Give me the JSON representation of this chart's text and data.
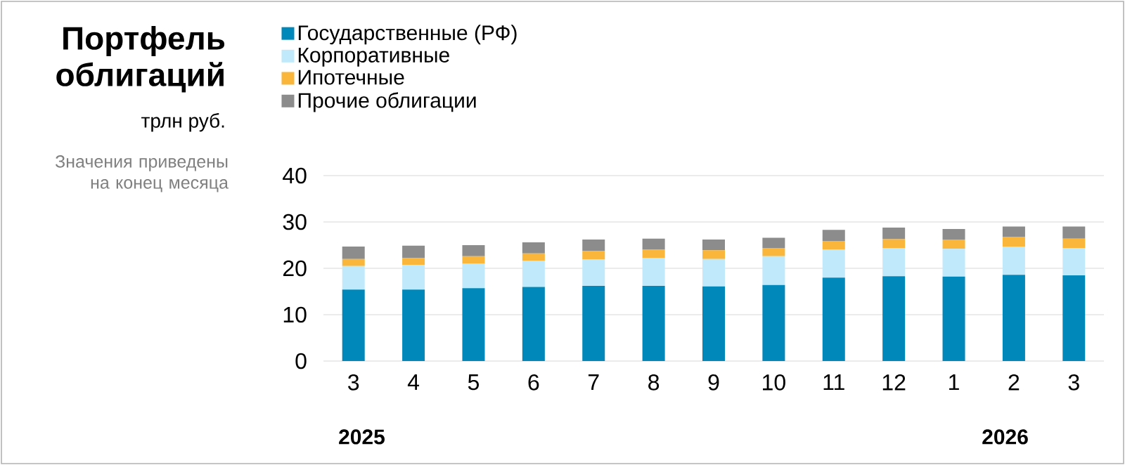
{
  "chart_data": {
    "type": "bar",
    "stacked": true,
    "title": "Портфель облигаций",
    "subtitle": "трлн руб.",
    "annotations": [
      "Значения приведены на конец месяца",
      "2025",
      "2026"
    ],
    "categories": [
      "3",
      "4",
      "5",
      "6",
      "7",
      "8",
      "9",
      "10",
      "11",
      "12",
      "1",
      "2",
      "3"
    ],
    "series": [
      {
        "name": "Государственные (РФ)",
        "color": "#0088bb",
        "values": [
          15.4,
          15.4,
          15.7,
          16.0,
          16.2,
          16.2,
          16.1,
          16.4,
          18.0,
          18.3,
          18.2,
          18.6,
          18.5
        ]
      },
      {
        "name": "Корпоративные",
        "color": "#c0eafc",
        "values": [
          5.1,
          5.3,
          5.3,
          5.6,
          5.7,
          6.0,
          5.9,
          6.2,
          6.1,
          6.0,
          6.0,
          6.1,
          5.9
        ]
      },
      {
        "name": "Ипотечные",
        "color": "#f9b63a",
        "values": [
          1.5,
          1.5,
          1.6,
          1.6,
          1.8,
          1.8,
          1.9,
          1.8,
          1.8,
          2.0,
          2.0,
          2.1,
          2.0
        ]
      },
      {
        "name": "Прочие облигации",
        "color": "#8c8c8c",
        "values": [
          2.7,
          2.7,
          2.4,
          2.4,
          2.5,
          2.4,
          2.3,
          2.2,
          2.4,
          2.5,
          2.3,
          2.2,
          2.6
        ]
      }
    ],
    "ylim": [
      0,
      40
    ],
    "yticks": [
      0,
      10,
      20,
      30,
      40
    ],
    "grid": "y",
    "legend": "top"
  }
}
